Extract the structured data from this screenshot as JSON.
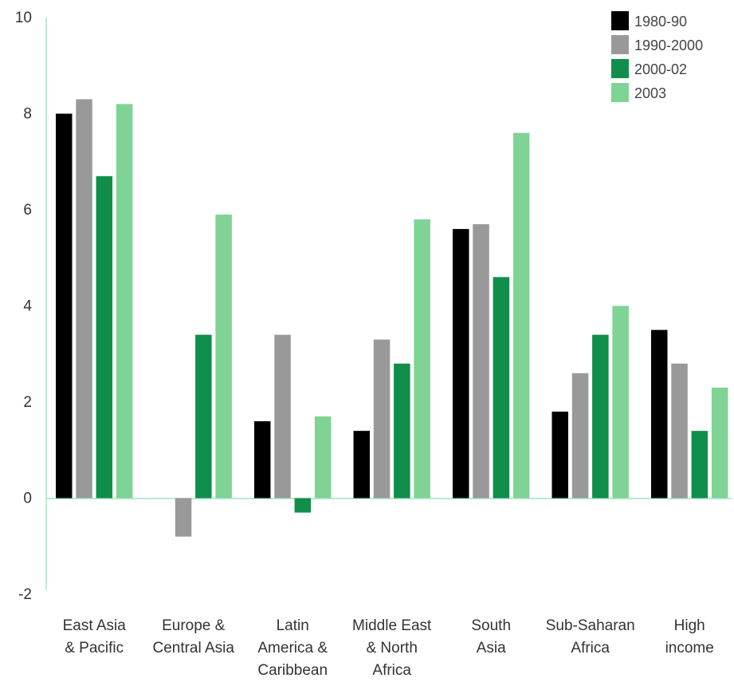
{
  "chart_data": {
    "type": "bar",
    "title": "",
    "xlabel": "",
    "ylabel": "",
    "ylim": [
      -2,
      10
    ],
    "yticks": [
      "10",
      "8",
      "6",
      "4",
      "2",
      "0",
      "-2"
    ],
    "grid": false,
    "legend_position": "top-right",
    "categories": [
      [
        "East Asia",
        "& Pacific"
      ],
      [
        "Europe &",
        "Central Asia"
      ],
      [
        "Latin",
        "America &",
        "Caribbean"
      ],
      [
        "Middle East",
        "& North",
        "Africa"
      ],
      [
        "South",
        "Asia"
      ],
      [
        "Sub-Saharan",
        "Africa"
      ],
      [
        "High",
        "income"
      ]
    ],
    "series": [
      {
        "name": "1980-90",
        "color": "#000000",
        "values": [
          8.0,
          null,
          1.6,
          1.4,
          5.6,
          1.8,
          3.5
        ]
      },
      {
        "name": "1990-2000",
        "color": "#999999",
        "values": [
          8.3,
          -0.8,
          3.4,
          3.3,
          5.7,
          2.6,
          2.8
        ]
      },
      {
        "name": "2000-02",
        "color": "#0f8f4a",
        "values": [
          6.7,
          3.4,
          -0.3,
          2.8,
          4.6,
          3.4,
          1.4
        ]
      },
      {
        "name": "2003",
        "color": "#7fd395",
        "values": [
          8.2,
          5.9,
          1.7,
          5.8,
          7.6,
          4.0,
          2.3
        ]
      }
    ]
  }
}
